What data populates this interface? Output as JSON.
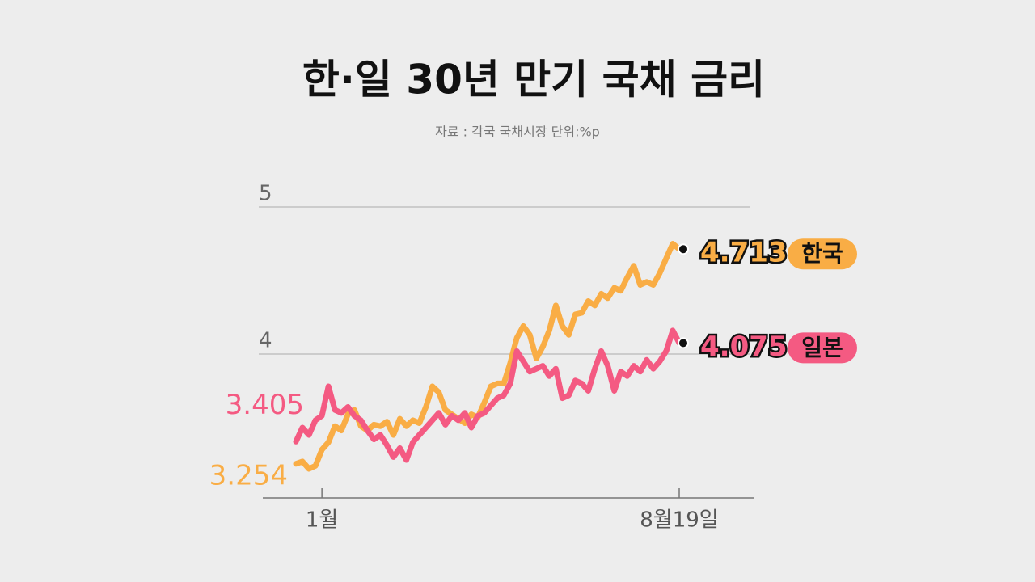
{
  "chart_data": {
    "type": "line",
    "title": "한·일 30년 만기 국채 금리",
    "subtitle": "자료 : 각국 국채시장  단위:%p",
    "categories": [
      null,
      null,
      null,
      null,
      "1월",
      null,
      null,
      null,
      null,
      null,
      null,
      null,
      null,
      null,
      null,
      null,
      null,
      null,
      null,
      null,
      null,
      null,
      null,
      null,
      null,
      null,
      null,
      null,
      null,
      null,
      null,
      null,
      null,
      null,
      null,
      null,
      null,
      null,
      null,
      null,
      null,
      null,
      null,
      null,
      null,
      null,
      null,
      null,
      null,
      null,
      null,
      null,
      null,
      null,
      null,
      null,
      null,
      null,
      null,
      "8월19일"
    ],
    "series": [
      {
        "name": "한국",
        "color": "#f9ad45",
        "values": [
          3.254,
          3.27,
          3.22,
          3.24,
          3.35,
          3.4,
          3.51,
          3.48,
          3.59,
          3.62,
          3.51,
          3.48,
          3.52,
          3.51,
          3.54,
          3.45,
          3.56,
          3.51,
          3.55,
          3.53,
          3.64,
          3.78,
          3.74,
          3.62,
          3.59,
          3.56,
          3.53,
          3.59,
          3.57,
          3.67,
          3.78,
          3.8,
          3.8,
          3.94,
          4.11,
          4.19,
          4.13,
          3.97,
          4.05,
          4.16,
          4.33,
          4.19,
          4.13,
          4.27,
          4.28,
          4.36,
          4.33,
          4.41,
          4.38,
          4.45,
          4.43,
          4.52,
          4.6,
          4.47,
          4.49,
          4.47,
          4.55,
          4.65,
          4.75,
          4.713
        ]
      },
      {
        "name": "일본",
        "color": "#f45a82",
        "values": [
          3.405,
          3.5,
          3.45,
          3.55,
          3.58,
          3.78,
          3.62,
          3.6,
          3.64,
          3.58,
          3.55,
          3.48,
          3.42,
          3.45,
          3.38,
          3.3,
          3.36,
          3.28,
          3.4,
          3.45,
          3.5,
          3.55,
          3.6,
          3.52,
          3.58,
          3.55,
          3.6,
          3.5,
          3.58,
          3.6,
          3.65,
          3.7,
          3.72,
          3.8,
          4.02,
          3.95,
          3.88,
          3.9,
          3.92,
          3.85,
          3.9,
          3.7,
          3.72,
          3.82,
          3.8,
          3.75,
          3.9,
          4.02,
          3.92,
          3.75,
          3.88,
          3.85,
          3.92,
          3.88,
          3.96,
          3.9,
          3.95,
          4.02,
          4.16,
          4.075
        ]
      }
    ],
    "ylim": [
      3.0,
      5.1
    ],
    "yticks": [
      4,
      5
    ],
    "grid": true
  }
}
